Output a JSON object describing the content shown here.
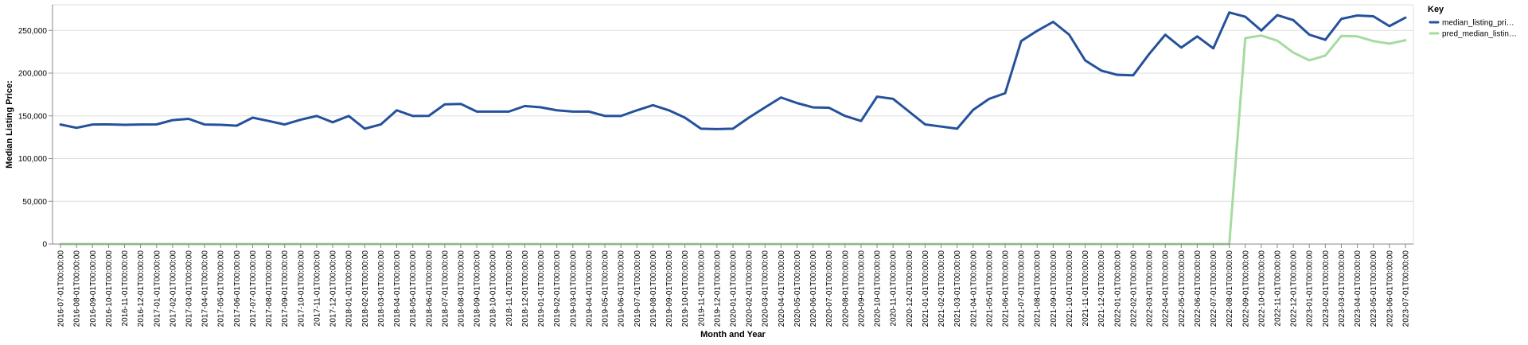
{
  "chart_data": {
    "type": "line",
    "xlabel": "Month and Year",
    "ylabel": "Median Listing Price:",
    "ylim": [
      0,
      280000
    ],
    "yticks": [
      0,
      50000,
      100000,
      150000,
      200000,
      250000
    ],
    "ytick_labels": [
      "0",
      "50,000",
      "100,000",
      "150,000",
      "200,000",
      "250,000"
    ],
    "grid": true,
    "legend": {
      "title": "Key",
      "position": "top-right"
    },
    "x": [
      "2016-07-01T00:00:00",
      "2016-08-01T00:00:00",
      "2016-09-01T00:00:00",
      "2016-10-01T00:00:00",
      "2016-11-01T00:00:00",
      "2016-12-01T00:00:00",
      "2017-01-01T00:00:00",
      "2017-02-01T00:00:00",
      "2017-03-01T00:00:00",
      "2017-04-01T00:00:00",
      "2017-05-01T00:00:00",
      "2017-06-01T00:00:00",
      "2017-07-01T00:00:00",
      "2017-08-01T00:00:00",
      "2017-09-01T00:00:00",
      "2017-10-01T00:00:00",
      "2017-11-01T00:00:00",
      "2017-12-01T00:00:00",
      "2018-01-01T00:00:00",
      "2018-02-01T00:00:00",
      "2018-03-01T00:00:00",
      "2018-04-01T00:00:00",
      "2018-05-01T00:00:00",
      "2018-06-01T00:00:00",
      "2018-07-01T00:00:00",
      "2018-08-01T00:00:00",
      "2018-09-01T00:00:00",
      "2018-10-01T00:00:00",
      "2018-11-01T00:00:00",
      "2018-12-01T00:00:00",
      "2019-01-01T00:00:00",
      "2019-02-01T00:00:00",
      "2019-03-01T00:00:00",
      "2019-04-01T00:00:00",
      "2019-05-01T00:00:00",
      "2019-06-01T00:00:00",
      "2019-07-01T00:00:00",
      "2019-08-01T00:00:00",
      "2019-09-01T00:00:00",
      "2019-10-01T00:00:00",
      "2019-11-01T00:00:00",
      "2019-12-01T00:00:00",
      "2020-01-01T00:00:00",
      "2020-02-01T00:00:00",
      "2020-03-01T00:00:00",
      "2020-04-01T00:00:00",
      "2020-05-01T00:00:00",
      "2020-06-01T00:00:00",
      "2020-07-01T00:00:00",
      "2020-08-01T00:00:00",
      "2020-09-01T00:00:00",
      "2020-10-01T00:00:00",
      "2020-11-01T00:00:00",
      "2020-12-01T00:00:00",
      "2021-01-01T00:00:00",
      "2021-02-01T00:00:00",
      "2021-03-01T00:00:00",
      "2021-04-01T00:00:00",
      "2021-05-01T00:00:00",
      "2021-06-01T00:00:00",
      "2021-07-01T00:00:00",
      "2021-08-01T00:00:00",
      "2021-09-01T00:00:00",
      "2021-10-01T00:00:00",
      "2021-11-01T00:00:00",
      "2021-12-01T00:00:00",
      "2022-01-01T00:00:00",
      "2022-02-01T00:00:00",
      "2022-03-01T00:00:00",
      "2022-04-01T00:00:00",
      "2022-05-01T00:00:00",
      "2022-06-01T00:00:00",
      "2022-07-01T00:00:00",
      "2022-08-01T00:00:00",
      "2022-09-01T00:00:00",
      "2022-10-01T00:00:00",
      "2022-11-01T00:00:00",
      "2022-12-01T00:00:00",
      "2023-01-01T00:00:00",
      "2023-02-01T00:00:00",
      "2023-03-01T00:00:00",
      "2023-04-01T00:00:00",
      "2023-05-01T00:00:00",
      "2023-06-01T00:00:00",
      "2023-07-01T00:00:00"
    ],
    "series": [
      {
        "name": "median_listing_pri…",
        "color": "#25519b",
        "values": [
          139900,
          136000,
          139900,
          140000,
          139500,
          139900,
          140000,
          145000,
          146500,
          139900,
          139500,
          138500,
          147900,
          144000,
          139900,
          145500,
          149900,
          142500,
          149900,
          135000,
          139900,
          156500,
          149900,
          150000,
          163500,
          164000,
          155000,
          155000,
          155000,
          161500,
          160000,
          156500,
          155000,
          155000,
          149900,
          149900,
          156500,
          162500,
          156500,
          147900,
          135000,
          134500,
          135000,
          148000,
          159900,
          171500,
          165000,
          159900,
          159500,
          149900,
          144000,
          172500,
          169900,
          155000,
          140000,
          137500,
          135000,
          157000,
          169900,
          176500,
          237500,
          249500,
          260000,
          245000,
          214900,
          203000,
          198000,
          197500,
          222500,
          244900,
          229900,
          243000,
          229000,
          271000,
          266000,
          249900,
          267900,
          262000,
          245000,
          239000,
          263500,
          267500,
          266500,
          255000,
          264900
        ]
      },
      {
        "name": "pred_median_listin…",
        "color": "#a6dba0",
        "values": [
          0,
          0,
          0,
          0,
          0,
          0,
          0,
          0,
          0,
          0,
          0,
          0,
          0,
          0,
          0,
          0,
          0,
          0,
          0,
          0,
          0,
          0,
          0,
          0,
          0,
          0,
          0,
          0,
          0,
          0,
          0,
          0,
          0,
          0,
          0,
          0,
          0,
          0,
          0,
          0,
          0,
          0,
          0,
          0,
          0,
          0,
          0,
          0,
          0,
          0,
          0,
          0,
          0,
          0,
          0,
          0,
          0,
          0,
          0,
          0,
          0,
          0,
          0,
          0,
          0,
          0,
          0,
          0,
          0,
          0,
          0,
          0,
          0,
          0,
          241000,
          244000,
          238000,
          224000,
          215000,
          220500,
          243500,
          243000,
          237500,
          234500,
          238500
        ]
      }
    ]
  }
}
